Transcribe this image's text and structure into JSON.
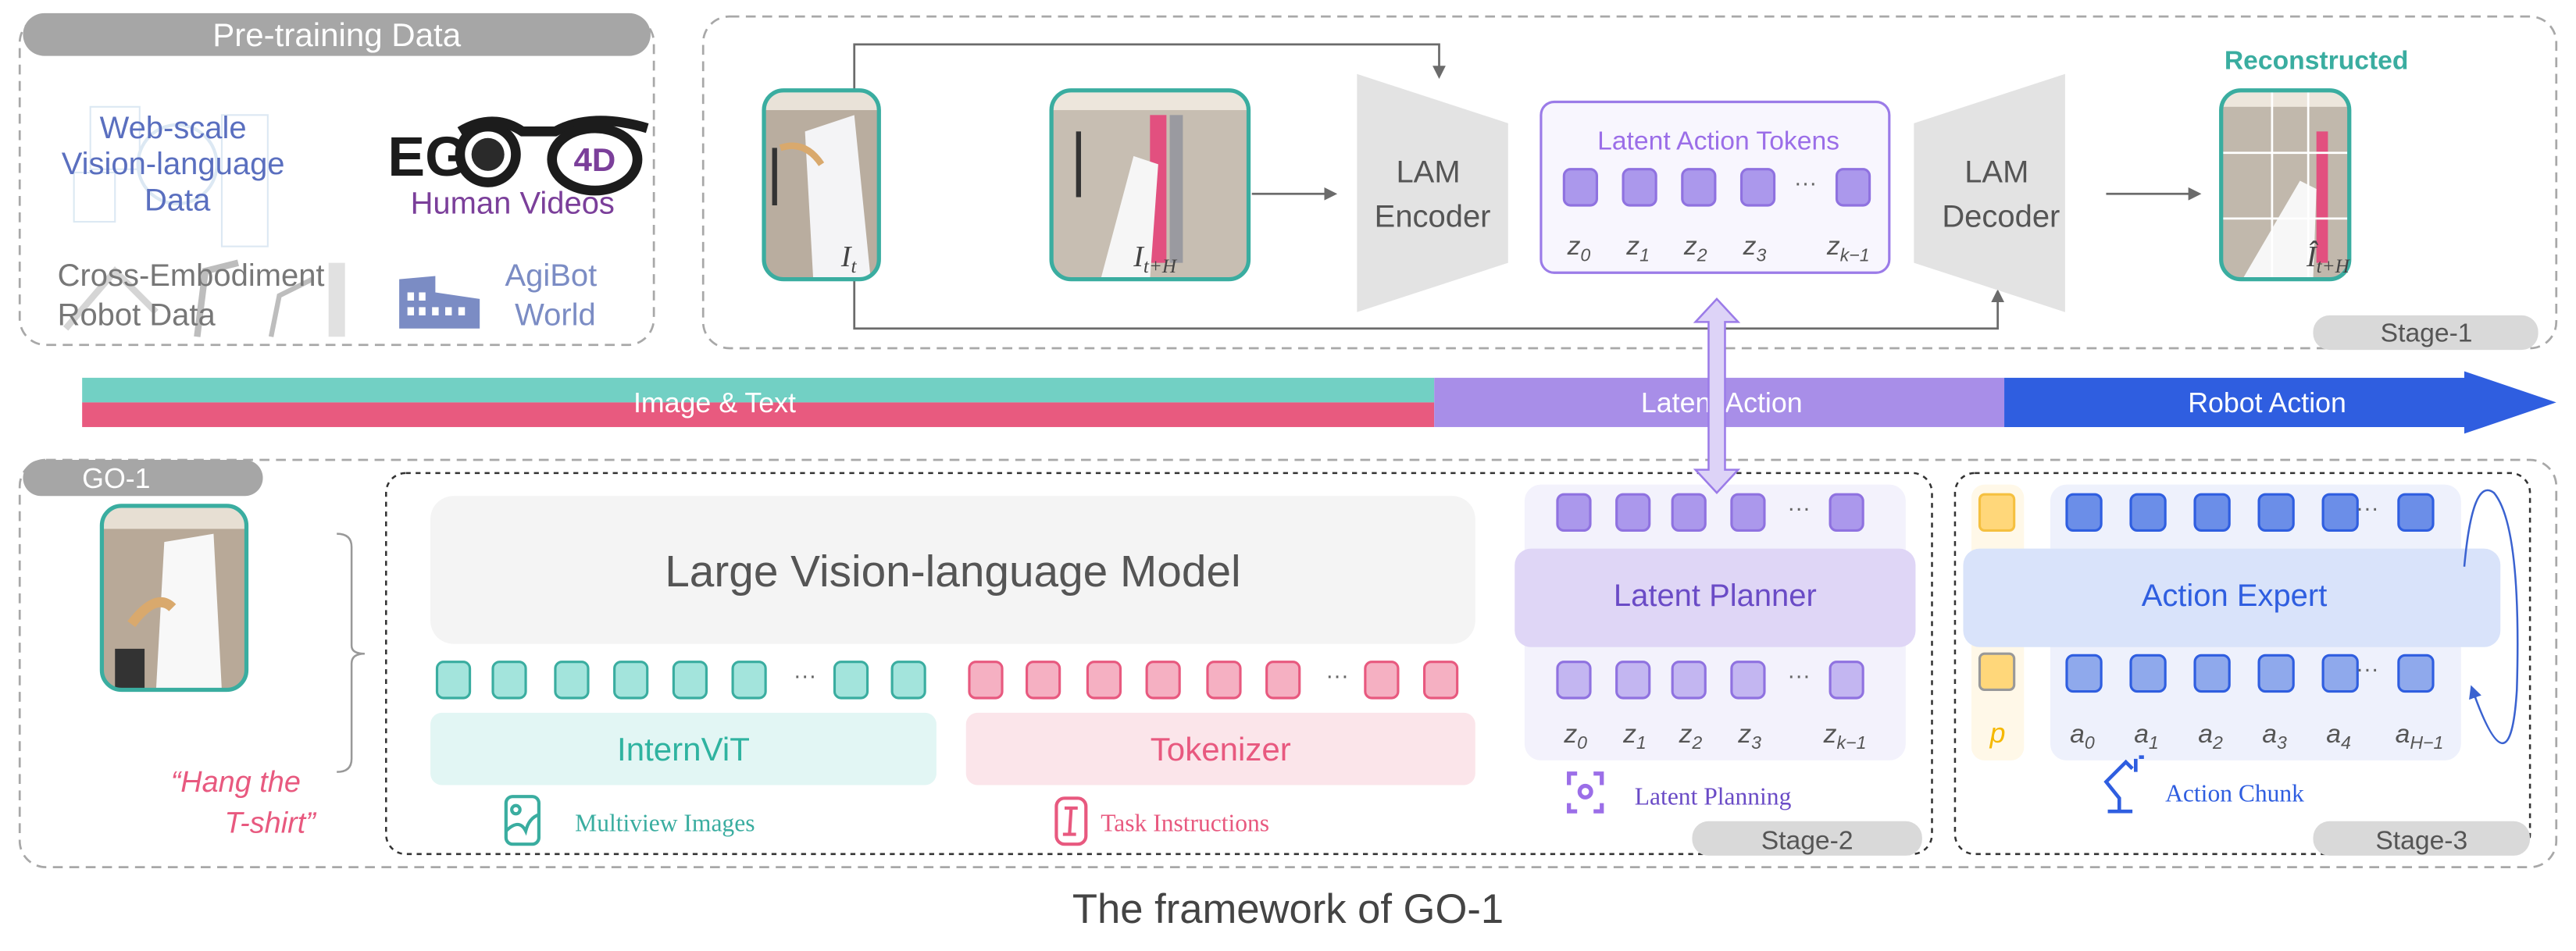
{
  "pretraining": {
    "header": "Pre-training Data",
    "web_lines": [
      "Web-scale",
      "Vision-language",
      "Data"
    ],
    "ego_logo": "EGO 4D",
    "human_videos": "Human Videos",
    "cross_lines": [
      "Cross-Embodiment",
      "Robot Data"
    ],
    "agibot_lines": [
      "AgiBot",
      "World"
    ]
  },
  "stage1": {
    "label": "Stage-1",
    "frame_t": {
      "base": "I",
      "sub": "t"
    },
    "frame_tH": {
      "base": "I",
      "sub": "t+H"
    },
    "frame_rec": {
      "base": "Î",
      "sub": "t+H"
    },
    "reconstructed": "Reconstructed",
    "encoder": [
      "LAM",
      "Encoder"
    ],
    "decoder": [
      "LAM",
      "Decoder"
    ],
    "tokens_title": "Latent Action Tokens",
    "token_labels": [
      {
        "b": "z",
        "s": "0"
      },
      {
        "b": "z",
        "s": "1"
      },
      {
        "b": "z",
        "s": "2"
      },
      {
        "b": "z",
        "s": "3"
      },
      {
        "b": "z",
        "s": "k−1"
      }
    ],
    "ellipsis": "···"
  },
  "band": {
    "image_text": "Image & Text",
    "latent_action": "Latent Action",
    "robot_action": "Robot Action"
  },
  "go1": {
    "label": "GO-1",
    "instruction_lines": [
      "“Hang the",
      "T-shirt”"
    ],
    "vlm": "Large Vision-language Model",
    "internvit": "InternViT",
    "tokenizer": "Tokenizer",
    "multiview": "Multiview Images",
    "task": "Task Instructions"
  },
  "stage2": {
    "label": "Stage-2",
    "planner": "Latent Planner",
    "token_labels": [
      {
        "b": "z",
        "s": "0"
      },
      {
        "b": "z",
        "s": "1"
      },
      {
        "b": "z",
        "s": "2"
      },
      {
        "b": "z",
        "s": "3"
      },
      {
        "b": "z",
        "s": "k−1"
      }
    ],
    "caption": "Latent Planning"
  },
  "stage3": {
    "label": "Stage-3",
    "expert": "Action Expert",
    "p_label": "p",
    "token_labels": [
      {
        "b": "a",
        "s": "0"
      },
      {
        "b": "a",
        "s": "1"
      },
      {
        "b": "a",
        "s": "2"
      },
      {
        "b": "a",
        "s": "3"
      },
      {
        "b": "a",
        "s": "4"
      },
      {
        "b": "a",
        "s": "H−1"
      }
    ],
    "caption": "Action Chunk"
  },
  "caption": "The framework of GO-1",
  "colors": {
    "teal": "#3aada0",
    "pink": "#e8597f",
    "purple": "#9b7be8",
    "blue": "#2f5ee0",
    "gray_pill": "#a6a6a6",
    "stage_pill": "#d9d9d9"
  }
}
